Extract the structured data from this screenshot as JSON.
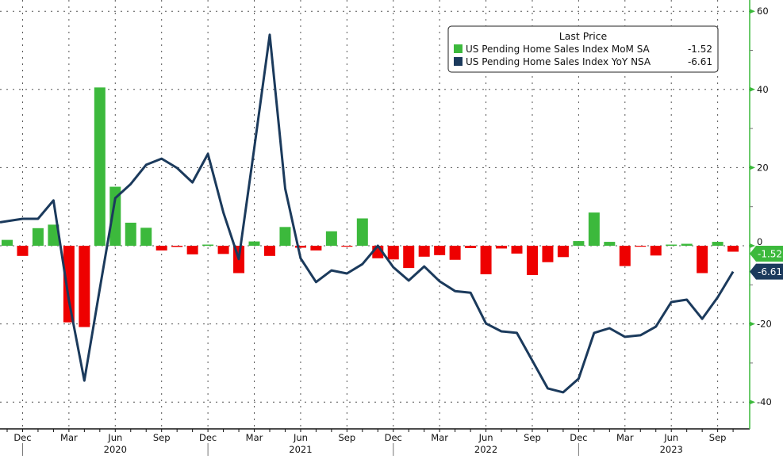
{
  "chart_data": {
    "type": "bar+line",
    "title": "",
    "legend": {
      "title": "Last Price",
      "placement": "top-right",
      "entries": [
        {
          "name": "US Pending Home Sales Index MoM SA",
          "last": "-1.52"
        },
        {
          "name": "US Pending Home Sales Index YoY NSA",
          "last": "-6.61"
        }
      ]
    },
    "x": [
      "2019-11",
      "2019-12",
      "2020-01",
      "2020-02",
      "2020-03",
      "2020-04",
      "2020-05",
      "2020-06",
      "2020-07",
      "2020-08",
      "2020-09",
      "2020-10",
      "2020-11",
      "2020-12",
      "2021-01",
      "2021-02",
      "2021-03",
      "2021-04",
      "2021-05",
      "2021-06",
      "2021-07",
      "2021-08",
      "2021-09",
      "2021-10",
      "2021-11",
      "2021-12",
      "2022-01",
      "2022-02",
      "2022-03",
      "2022-04",
      "2022-05",
      "2022-06",
      "2022-07",
      "2022-08",
      "2022-09",
      "2022-10",
      "2022-11",
      "2022-12",
      "2023-01",
      "2023-02",
      "2023-03",
      "2023-04",
      "2023-05",
      "2023-06",
      "2023-07",
      "2023-08",
      "2023-09",
      "2023-10"
    ],
    "series": [
      {
        "name": "US Pending Home Sales Index MoM SA",
        "type": "bar",
        "positive_color": "#3cb93c",
        "negative_color": "#ee0000",
        "values": [
          1.5,
          -2.6,
          4.5,
          5.4,
          -19.6,
          -20.8,
          40.5,
          15.1,
          5.9,
          4.6,
          -1.2,
          -0.3,
          -2.2,
          0.3,
          -2.1,
          -7.0,
          1.1,
          -2.6,
          4.8,
          -0.5,
          -1.2,
          3.7,
          -0.1,
          7.0,
          -3.2,
          -3.5,
          -5.7,
          -2.8,
          -2.4,
          -3.6,
          -0.6,
          -7.3,
          -0.7,
          -2.0,
          -7.5,
          -4.2,
          -2.9,
          1.2,
          8.5,
          1.0,
          -5.2,
          -0.2,
          -2.5,
          0.3,
          0.5,
          -7.0,
          1.0,
          -1.52
        ]
      },
      {
        "name": "US Pending Home Sales Index YoY NSA",
        "type": "line",
        "color": "#1b3a5c",
        "values": [
          6.0,
          6.9,
          6.9,
          11.6,
          -14.0,
          -34.5,
          -11.0,
          12.2,
          15.8,
          20.7,
          22.3,
          19.9,
          16.2,
          23.5,
          8.5,
          -3.4,
          25.0,
          54.0,
          14.6,
          -3.2,
          -9.3,
          -6.3,
          -7.1,
          -4.7,
          0.0,
          -5.5,
          -8.9,
          -5.3,
          -9.1,
          -11.6,
          -12.0,
          -19.9,
          -21.9,
          -22.3,
          -29.4,
          -36.5,
          -37.5,
          -34.0,
          -22.3,
          -21.1,
          -23.3,
          -22.9,
          -20.7,
          -14.4,
          -13.8,
          -18.7,
          -13.2,
          -6.61
        ]
      }
    ],
    "y_axis": {
      "position": "right",
      "ylim": [
        -47,
        62
      ],
      "ticks": [
        "60",
        "40",
        "20",
        "0",
        "-20",
        "-40"
      ],
      "color": "#3cb93c"
    },
    "x_ticks": [
      {
        "label": "Dec",
        "month": "2019-12"
      },
      {
        "label": "Mar",
        "month": "2020-03"
      },
      {
        "label": "Jun",
        "month": "2020-06"
      },
      {
        "label": "Sep",
        "month": "2020-09"
      },
      {
        "label": "Dec",
        "month": "2020-12"
      },
      {
        "label": "Mar",
        "month": "2021-03"
      },
      {
        "label": "Jun",
        "month": "2021-06"
      },
      {
        "label": "Sep",
        "month": "2021-09"
      },
      {
        "label": "Dec",
        "month": "2021-12"
      },
      {
        "label": "Mar",
        "month": "2022-03"
      },
      {
        "label": "Jun",
        "month": "2022-06"
      },
      {
        "label": "Sep",
        "month": "2022-09"
      },
      {
        "label": "Dec",
        "month": "2022-12"
      },
      {
        "label": "Mar",
        "month": "2023-03"
      },
      {
        "label": "Jun",
        "month": "2023-06"
      },
      {
        "label": "Sep",
        "month": "2023-09"
      }
    ],
    "year_labels": [
      {
        "label": "2020",
        "month": "2020-06"
      },
      {
        "label": "2021",
        "month": "2021-06"
      },
      {
        "label": "2022",
        "month": "2022-06"
      },
      {
        "label": "2023",
        "month": "2023-06"
      }
    ],
    "grid": true,
    "last_value_tags": [
      {
        "label": "-1.52",
        "value": -1.52,
        "color": "#3cb93c"
      },
      {
        "label": "-6.61",
        "value": -6.61,
        "color": "#1b3a5c"
      }
    ]
  }
}
